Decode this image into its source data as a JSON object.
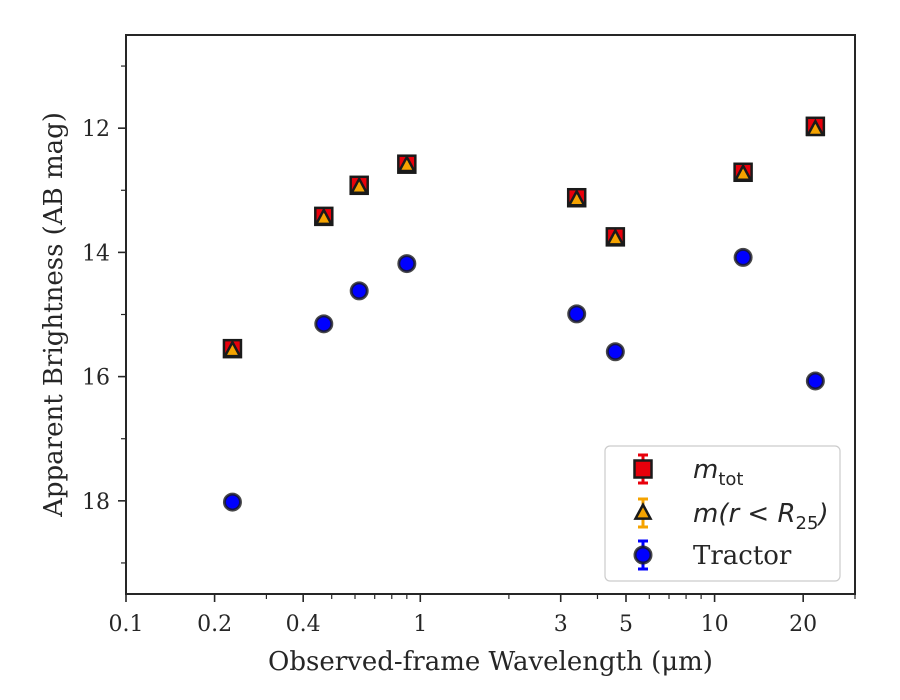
{
  "chart_data": {
    "type": "scatter",
    "x_scale": "log",
    "y_inverted": true,
    "xlim": [
      0.1,
      30
    ],
    "ylim": [
      19.5,
      10.5
    ],
    "xlabel": "Observed-frame Wavelength (μm)",
    "ylabel": "Apparent Brightness (AB mag)",
    "x_ticks": [
      {
        "value": 0.1,
        "label": "0.1"
      },
      {
        "value": 0.2,
        "label": "0.2"
      },
      {
        "value": 0.4,
        "label": "0.4"
      },
      {
        "value": 1,
        "label": "1"
      },
      {
        "value": 3,
        "label": "3"
      },
      {
        "value": 5,
        "label": "5"
      },
      {
        "value": 10,
        "label": "10"
      },
      {
        "value": 20,
        "label": "20"
      }
    ],
    "y_ticks": [
      {
        "value": 12,
        "label": "12"
      },
      {
        "value": 14,
        "label": "14"
      },
      {
        "value": 16,
        "label": "16"
      },
      {
        "value": 18,
        "label": "18"
      }
    ],
    "grid": false,
    "legend_position": "bottom-right",
    "series": [
      {
        "name": "m_tot",
        "label_main": "m",
        "label_sub": "tot",
        "marker": "square",
        "face_color": "#e8000b",
        "edge_color": "#1a1a1a",
        "error_color": "#e8000b",
        "x": [
          0.23,
          0.47,
          0.62,
          0.9,
          3.4,
          4.6,
          12.5,
          22
        ],
        "y": [
          15.55,
          13.42,
          12.92,
          12.58,
          13.12,
          13.75,
          12.71,
          11.97
        ]
      },
      {
        "name": "m(r < R_25)",
        "label_main": "m(r < R",
        "label_sub": "25",
        "label_end": ")",
        "marker": "triangle",
        "face_color": "#f5a300",
        "edge_color": "#1a1a1a",
        "error_color": "#f5a300",
        "x": [
          0.23,
          0.47,
          0.62,
          0.9,
          3.4,
          4.6,
          12.5,
          22
        ],
        "y": [
          15.58,
          13.45,
          12.95,
          12.6,
          13.15,
          13.78,
          12.74,
          12.02
        ]
      },
      {
        "name": "Tractor",
        "marker": "circle",
        "face_color": "#0000ff",
        "edge_color": "#1a1a1a",
        "error_color": "#0000ff",
        "x": [
          0.23,
          0.47,
          0.62,
          0.9,
          3.4,
          4.6,
          12.5,
          22
        ],
        "y": [
          18.02,
          15.15,
          14.62,
          14.18,
          14.99,
          15.6,
          14.08,
          16.07
        ]
      }
    ]
  }
}
